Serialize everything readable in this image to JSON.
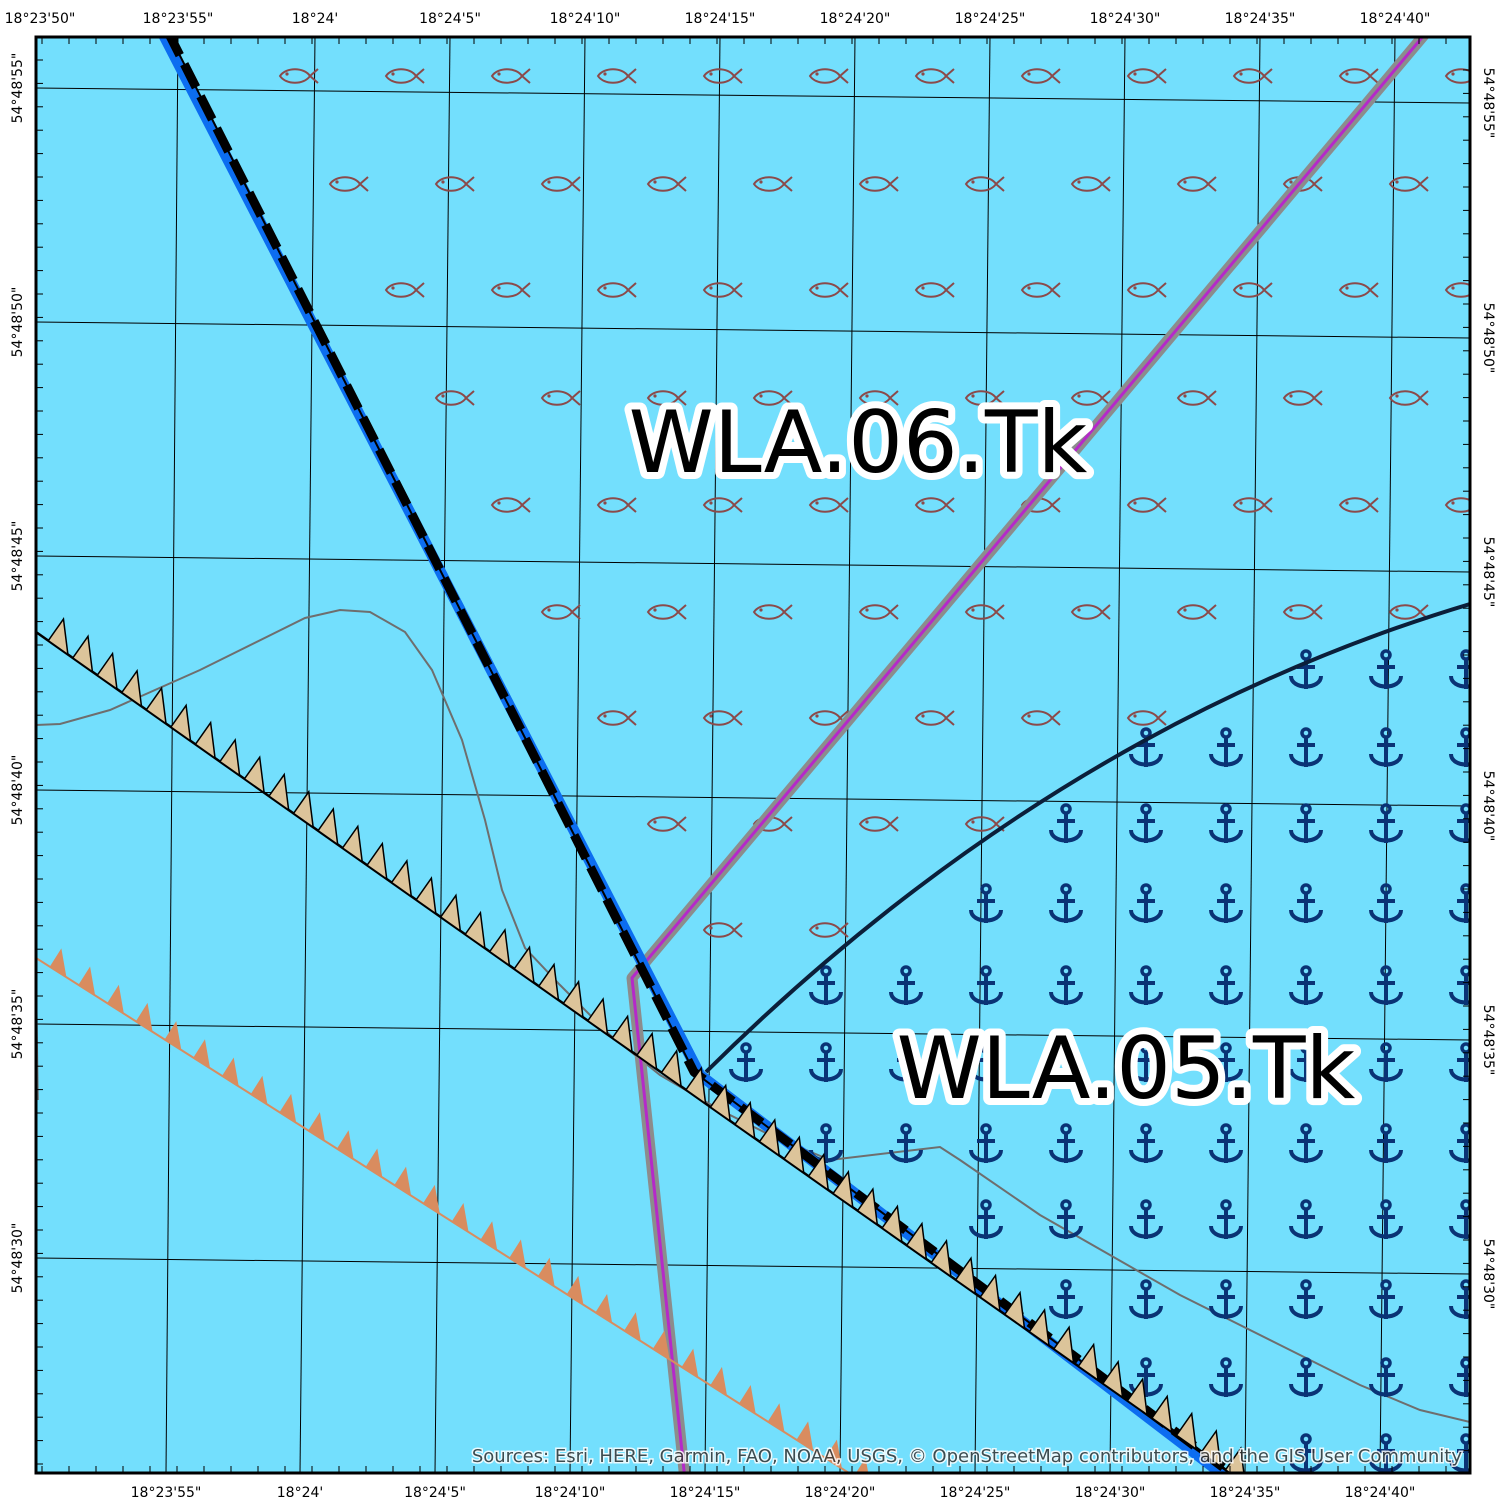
{
  "map": {
    "zone_labels": {
      "north": "WLA.06.Tk",
      "south": "WLA.05.Tk"
    },
    "attribution": "Sources:  Esri, HERE, Garmin, FAO, NOAA, USGS, © OpenStreetMap contributors, and the GIS User Community",
    "top_ticks": [
      "18°23'50\"",
      "18°23'55\"",
      "18°24'",
      "18°24'5\"",
      "18°24'10\"",
      "18°24'15\"",
      "18°24'20\"",
      "18°24'25\"",
      "18°24'30\"",
      "18°24'35\"",
      "18°24'40\""
    ],
    "bottom_ticks": [
      "18°23'55\"",
      "18°24'",
      "18°24'5\"",
      "18°24'10\"",
      "18°24'15\"",
      "18°24'20\"",
      "18°24'25\"",
      "18°24'30\"",
      "18°24'35\"",
      "18°24'40\""
    ],
    "left_ticks": [
      "54°48'55\"",
      "54°48'50\"",
      "54°48'45\"",
      "54°48'40\"",
      "54°48'35\"",
      "54°48'30\""
    ],
    "right_ticks": [
      "54°48'55\"",
      "54°48'50\"",
      "54°48'45\"",
      "54°48'40\"",
      "54°48'35\"",
      "54°48'30\""
    ],
    "colors": {
      "water": "#73dffd",
      "fish_symbol": "#8b4a4a",
      "anchor_symbol": "#0a3375",
      "boundary_blue": "#0c6df0",
      "route_purple": "#b529c9",
      "route_halo": "#8c8c8c",
      "sawtooth_fill": "#dcc49a",
      "sawtooth_orange": "#d98c5f",
      "depth_contour": "#6e6e6e"
    },
    "symbols": {
      "fishing_area": "fish-icon",
      "anchorage_area": "anchor-icon"
    }
  }
}
